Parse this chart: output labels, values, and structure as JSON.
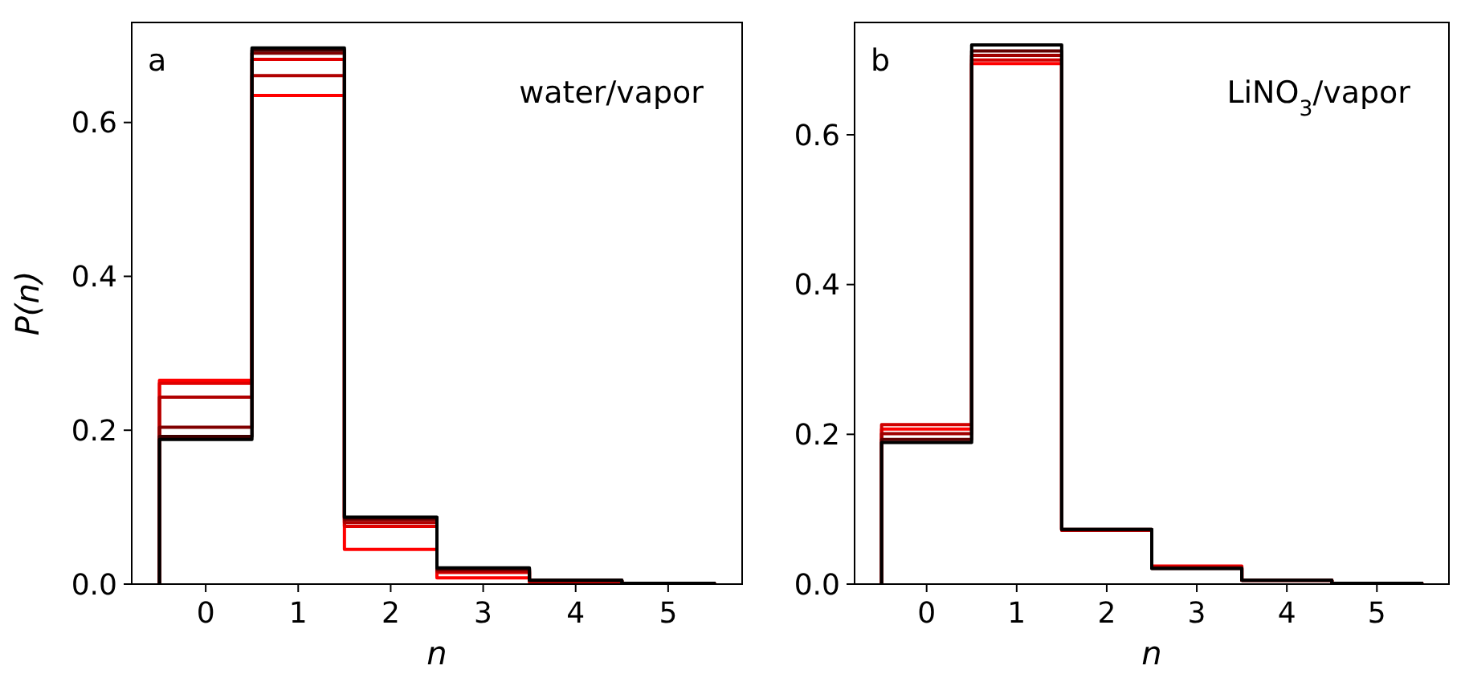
{
  "chart_data": [
    {
      "type": "histogram",
      "xlabel": "n",
      "ylabel": "P(n)",
      "annotations": [
        "a",
        "water/vapor"
      ],
      "bins": [
        -0.5,
        0.5,
        1.5,
        2.5,
        3.5,
        4.5,
        5.5
      ],
      "xlim": [
        -0.8,
        5.8
      ],
      "ylim": [
        0,
        0.73
      ],
      "xticks": [
        0,
        1,
        2,
        3,
        4,
        5
      ],
      "yticks": [
        {
          "value": 0,
          "label": "0.0"
        },
        {
          "value": 0.2,
          "label": "0.2"
        },
        {
          "value": 0.4,
          "label": "0.4"
        },
        {
          "value": 0.6,
          "label": "0.6"
        }
      ],
      "series": [
        {
          "color": "#ff0000",
          "values": [
            0.265,
            0.635,
            0.045,
            0.008,
            0.002,
            0.001
          ]
        },
        {
          "color": "#e00000",
          "values": [
            0.261,
            0.682,
            0.075,
            0.015,
            0.004,
            0.001
          ]
        },
        {
          "color": "#b00000",
          "values": [
            0.243,
            0.661,
            0.08,
            0.017,
            0.004,
            0.001
          ]
        },
        {
          "color": "#800000",
          "values": [
            0.204,
            0.69,
            0.084,
            0.019,
            0.005,
            0.001
          ]
        },
        {
          "color": "#400000",
          "values": [
            0.192,
            0.694,
            0.086,
            0.02,
            0.005,
            0.001
          ]
        },
        {
          "color": "#000000",
          "values": [
            0.188,
            0.697,
            0.087,
            0.021,
            0.005,
            0.001
          ]
        }
      ]
    },
    {
      "type": "histogram",
      "xlabel": "n",
      "annotations": [
        "b",
        "LiNO$_{3}$/vapor"
      ],
      "bins": [
        -0.5,
        0.5,
        1.5,
        2.5,
        3.5,
        4.5,
        5.5
      ],
      "xlim": [
        -0.8,
        5.8
      ],
      "ylim": [
        0,
        0.75
      ],
      "xticks": [
        0,
        1,
        2,
        3,
        4,
        5
      ],
      "yticks": [
        {
          "value": 0,
          "label": "0.0"
        },
        {
          "value": 0.2,
          "label": "0.2"
        },
        {
          "value": 0.4,
          "label": "0.4"
        },
        {
          "value": 0.6,
          "label": "0.6"
        }
      ],
      "series": [
        {
          "color": "#ff0000",
          "values": [
            0.207,
            0.695,
            0.072,
            0.024,
            0.005,
            0.001
          ]
        },
        {
          "color": "#d00000",
          "values": [
            0.213,
            0.7,
            0.072,
            0.023,
            0.005,
            0.001
          ]
        },
        {
          "color": "#a00000",
          "values": [
            0.201,
            0.706,
            0.072,
            0.022,
            0.005,
            0.001
          ]
        },
        {
          "color": "#600000",
          "values": [
            0.193,
            0.712,
            0.073,
            0.021,
            0.005,
            0.001
          ]
        },
        {
          "color": "#000000",
          "values": [
            0.189,
            0.72,
            0.073,
            0.021,
            0.005,
            0.001
          ]
        }
      ]
    }
  ]
}
